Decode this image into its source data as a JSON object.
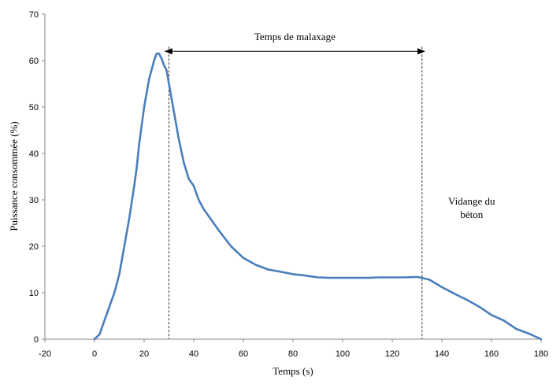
{
  "chart_data": {
    "type": "line",
    "title": "",
    "xlabel": "Temps (s)",
    "ylabel": "Puissance consommée (%)",
    "xlim": [
      -20,
      180
    ],
    "ylim": [
      0,
      70
    ],
    "xticks": [
      -20,
      0,
      20,
      40,
      60,
      80,
      100,
      120,
      140,
      160,
      180
    ],
    "yticks": [
      0,
      10,
      20,
      30,
      40,
      50,
      60,
      70
    ],
    "xtick_labels": [
      "-20",
      "0",
      "20",
      "40",
      "60",
      "80",
      "100",
      "120",
      "140",
      "160",
      "180"
    ],
    "ytick_labels": [
      "0",
      "10",
      "20",
      "30",
      "40",
      "50",
      "60",
      "70"
    ],
    "grid": false,
    "series": [
      {
        "name": "Puissance consommée",
        "color": "#4a7ebb",
        "x": [
          0,
          2,
          4,
          6,
          8,
          10,
          12,
          14,
          16,
          17,
          18,
          20,
          22,
          24,
          25,
          26,
          27,
          28,
          29,
          30,
          32,
          34,
          36,
          38,
          40,
          42,
          44,
          46,
          48,
          50,
          55,
          60,
          65,
          70,
          75,
          80,
          85,
          90,
          95,
          100,
          105,
          110,
          115,
          120,
          125,
          130,
          132,
          135,
          140,
          145,
          150,
          155,
          160,
          165,
          170,
          175,
          180
        ],
        "values": [
          0,
          1,
          4,
          7,
          10,
          14,
          20,
          26,
          33,
          37,
          42,
          50,
          56,
          60,
          61.5,
          61.5,
          60.5,
          59,
          58,
          55,
          49,
          43,
          38,
          34.5,
          33,
          30,
          28,
          26.5,
          25,
          23.5,
          20,
          17.5,
          16,
          15,
          14.5,
          14,
          13.7,
          13.3,
          13.2,
          13.2,
          13.2,
          13.2,
          13.3,
          13.3,
          13.3,
          13.4,
          13.2,
          12.8,
          11.2,
          9.8,
          8.5,
          7,
          5.2,
          4,
          2.2,
          1.2,
          0
        ]
      }
    ],
    "vlines": [
      {
        "x": 30,
        "style": "dashed"
      },
      {
        "x": 132,
        "style": "dashed"
      }
    ],
    "annotations": [
      {
        "text": "Temps de malaxage",
        "arrow_from": 28.5,
        "arrow_to": 133,
        "arrow_y": 62
      },
      {
        "text_line1": "Vidange du",
        "text_line2": "béton",
        "x": 152,
        "y": 29
      }
    ]
  }
}
